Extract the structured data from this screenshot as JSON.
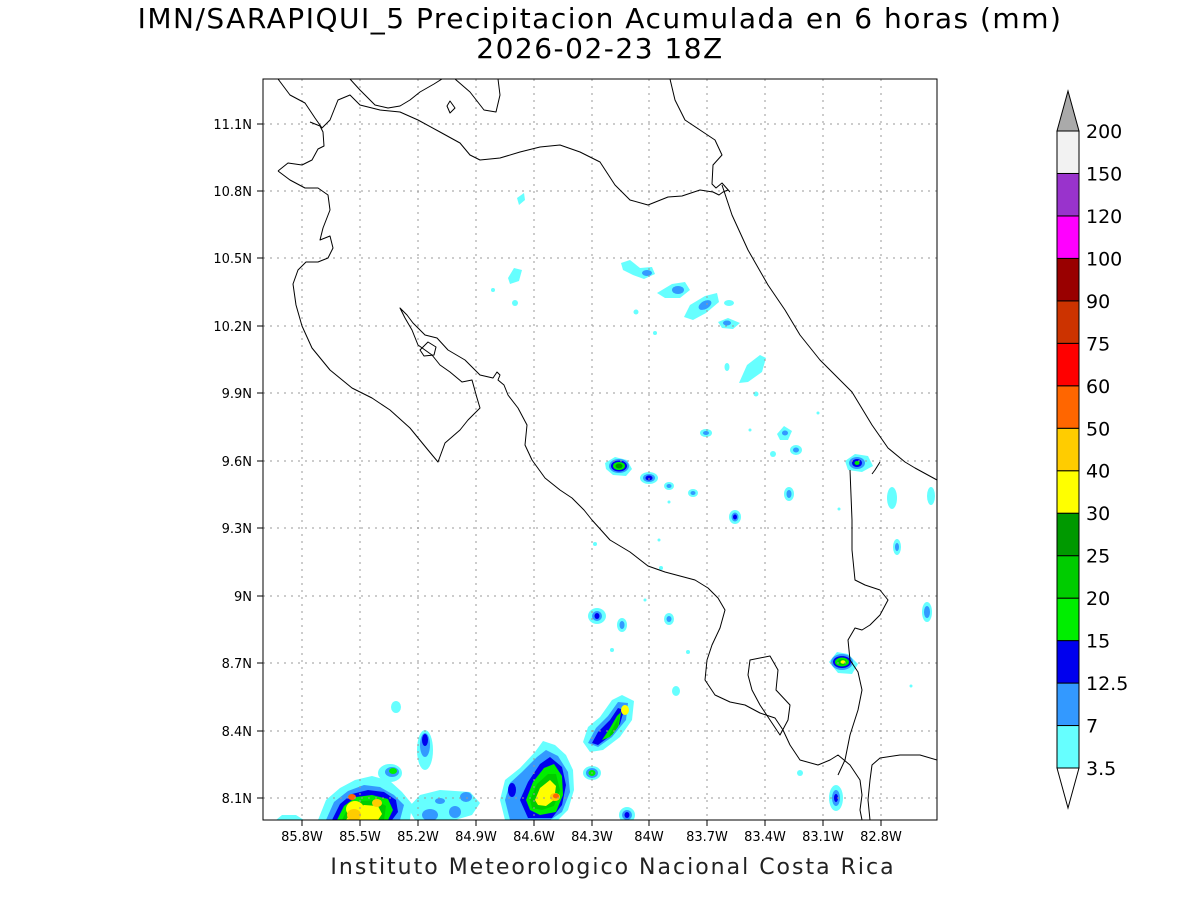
{
  "title_line1": "IMN/SARAPIQUI_5 Precipitacion Acumulada en 6 horas (mm)",
  "title_line2": "2026-02-23 18Z",
  "credit": "Instituto Meteorologico Nacional Costa Rica",
  "lat_labels": [
    "11.1N",
    "10.8N",
    "10.5N",
    "10.2N",
    "9.9N",
    "9.6N",
    "9.3N",
    "9N",
    "8.7N",
    "8.4N",
    "8.1N"
  ],
  "lon_labels": [
    "85.8W",
    "85.5W",
    "85.2W",
    "84.9W",
    "84.6W",
    "84.3W",
    "84W",
    "83.7W",
    "83.4W",
    "83.1W",
    "82.8W"
  ],
  "colorbar": {
    "levels": [
      "3.5",
      "7",
      "12.5",
      "15",
      "20",
      "25",
      "30",
      "40",
      "50",
      "60",
      "75",
      "90",
      "100",
      "120",
      "150",
      "200"
    ],
    "colors": [
      "#ffffff",
      "#66ffff",
      "#3399ff",
      "#0000ee",
      "#00ee00",
      "#00cc00",
      "#009900",
      "#ffff00",
      "#ffcc00",
      "#ff6600",
      "#ff0000",
      "#cc3300",
      "#990000",
      "#ff00ff",
      "#9933cc",
      "#f2f2f2",
      "#aaaaaa"
    ]
  }
}
